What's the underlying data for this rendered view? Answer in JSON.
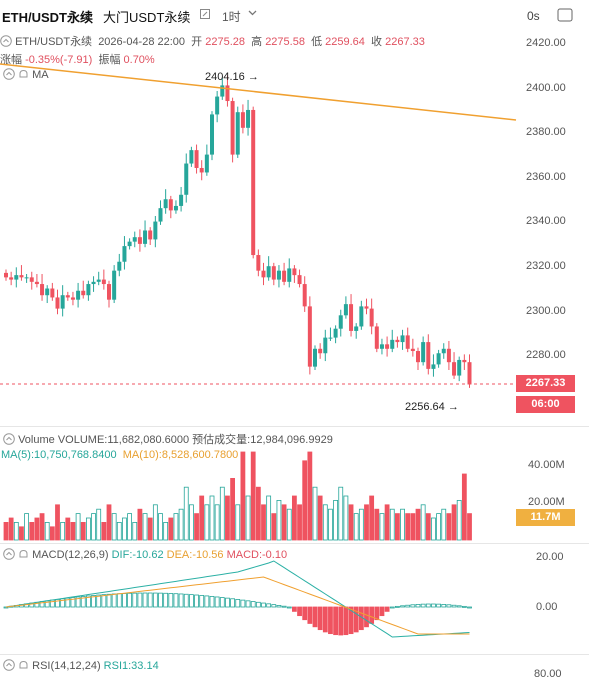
{
  "header": {
    "pair": "ETH/USDT永续",
    "subtitle": "大门USDT永续",
    "interval": "1时",
    "countdown": "0s"
  },
  "info": {
    "symbol": "ETH/USDT永续",
    "datetime": "2026-04-28 22:00",
    "open_label": "开",
    "open": "2275.28",
    "high_label": "高",
    "high": "2275.58",
    "low_label": "低",
    "low": "2259.64",
    "close_label": "收",
    "close": "2267.33",
    "change_label": "涨幅",
    "change": "-0.35%(-7.91)",
    "amp_label": "振幅",
    "amp": "0.70%"
  },
  "ma": {
    "label": "MA"
  },
  "annotations": {
    "high_mark": "2404.16",
    "low_mark": "2256.64"
  },
  "price_axis": [
    "2420.00",
    "2400.00",
    "2380.00",
    "2360.00",
    "2340.00",
    "2320.00",
    "2300.00",
    "2280.00"
  ],
  "last_price": "2267.33",
  "countdown_tag": "06:00",
  "volume": {
    "label": "Volume",
    "value_text": "VOLUME:11,682,080.6000",
    "est_text": "预估成交量:12,984,096.9929",
    "ma5_text": "MA(5):10,750,768.8400",
    "ma10_text": "MA(10):8,528,600.7800",
    "axis": [
      "40.00M",
      "20.00M"
    ],
    "current_tag": "11.7M"
  },
  "macd": {
    "label": "MACD(12,26,9)",
    "dif_text": "DIF:-10.62",
    "dea_text": "DEA:-10.56",
    "macd_text": "MACD:-0.10",
    "axis": [
      "20.00",
      "0.00"
    ]
  },
  "rsi": {
    "label": "RSI(14,12,24)",
    "value_text": "RSI1:33.14",
    "axis": [
      "80.00"
    ]
  },
  "colors": {
    "up": "#26a69a",
    "down": "#ef5360",
    "trend": "#f0a030",
    "dea": "#f0a030",
    "dif": "#2bb0a5"
  }
}
